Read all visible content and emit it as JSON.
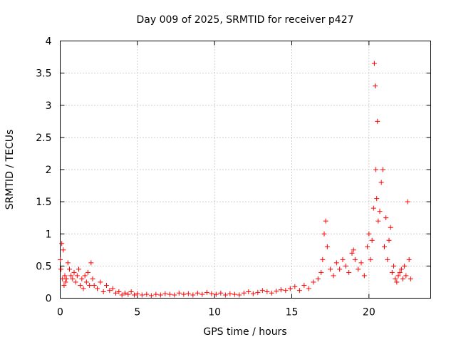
{
  "chart_data": {
    "type": "scatter",
    "title": "Day 009 of 2025, SRMTID for receiver p427",
    "xlabel": "GPS time / hours",
    "ylabel": "SRMTID / TECUs",
    "xlim": [
      0,
      24
    ],
    "ylim": [
      0,
      4
    ],
    "xticks": [
      0,
      5,
      10,
      15,
      20
    ],
    "xtick_labels": [
      "0",
      "5",
      "10",
      "15",
      "20"
    ],
    "yticks": [
      0,
      0.5,
      1,
      1.5,
      2,
      2.5,
      3,
      3.5,
      4
    ],
    "ytick_labels": [
      "0",
      "0.5",
      "1",
      "1.5",
      "2",
      "2.5",
      "3",
      "3.5",
      "4"
    ],
    "grid": true,
    "marker": "+",
    "color": "#ff0000",
    "series": [
      {
        "name": "SRMTID",
        "x": [
          0.0,
          0.05,
          0.1,
          0.15,
          0.2,
          0.25,
          0.3,
          0.35,
          0.4,
          0.5,
          0.6,
          0.7,
          0.8,
          0.9,
          1.0,
          1.1,
          1.2,
          1.3,
          1.4,
          1.5,
          1.6,
          1.7,
          1.8,
          1.9,
          2.0,
          2.1,
          2.2,
          2.4,
          2.6,
          2.8,
          3.0,
          3.2,
          3.4,
          3.6,
          3.8,
          4.0,
          4.2,
          4.4,
          4.6,
          4.8,
          5.0,
          5.3,
          5.6,
          5.9,
          6.2,
          6.5,
          6.8,
          7.1,
          7.4,
          7.7,
          8.0,
          8.3,
          8.6,
          8.9,
          9.2,
          9.5,
          9.8,
          10.1,
          10.4,
          10.7,
          11.0,
          11.3,
          11.6,
          11.9,
          12.2,
          12.5,
          12.8,
          13.1,
          13.4,
          13.7,
          14.0,
          14.3,
          14.6,
          14.9,
          15.2,
          15.5,
          15.8,
          16.1,
          16.4,
          16.7,
          16.9,
          17.0,
          17.1,
          17.2,
          17.3,
          17.5,
          17.7,
          17.9,
          18.1,
          18.3,
          18.5,
          18.7,
          18.9,
          19.0,
          19.1,
          19.3,
          19.5,
          19.7,
          19.9,
          20.0,
          20.1,
          20.2,
          20.3,
          20.35,
          20.4,
          20.45,
          20.5,
          20.55,
          20.6,
          20.7,
          20.8,
          20.9,
          21.0,
          21.1,
          21.2,
          21.3,
          21.4,
          21.5,
          21.6,
          21.7,
          21.8,
          21.9,
          22.0,
          22.1,
          22.2,
          22.3,
          22.4,
          22.5,
          22.6,
          22.7
        ],
        "y": [
          0.6,
          0.45,
          0.85,
          0.3,
          0.75,
          0.2,
          0.35,
          0.25,
          0.3,
          0.55,
          0.45,
          0.35,
          0.3,
          0.4,
          0.25,
          0.35,
          0.45,
          0.2,
          0.3,
          0.15,
          0.35,
          0.25,
          0.4,
          0.2,
          0.55,
          0.3,
          0.2,
          0.15,
          0.25,
          0.1,
          0.2,
          0.12,
          0.15,
          0.08,
          0.1,
          0.05,
          0.08,
          0.06,
          0.1,
          0.05,
          0.07,
          0.05,
          0.06,
          0.04,
          0.06,
          0.05,
          0.07,
          0.06,
          0.05,
          0.08,
          0.06,
          0.07,
          0.05,
          0.08,
          0.06,
          0.09,
          0.07,
          0.06,
          0.08,
          0.05,
          0.07,
          0.06,
          0.05,
          0.08,
          0.1,
          0.07,
          0.09,
          0.12,
          0.1,
          0.08,
          0.11,
          0.13,
          0.12,
          0.15,
          0.18,
          0.12,
          0.2,
          0.15,
          0.25,
          0.3,
          0.4,
          0.6,
          1.0,
          1.2,
          0.8,
          0.45,
          0.35,
          0.55,
          0.45,
          0.6,
          0.5,
          0.4,
          0.7,
          0.75,
          0.6,
          0.45,
          0.55,
          0.35,
          0.8,
          1.0,
          0.6,
          0.9,
          1.4,
          3.65,
          3.3,
          2.0,
          1.55,
          2.75,
          1.2,
          1.35,
          1.8,
          2.0,
          0.8,
          1.25,
          0.6,
          0.9,
          1.1,
          0.4,
          0.5,
          0.3,
          0.25,
          0.35,
          0.4,
          0.45,
          0.3,
          0.5,
          0.35,
          1.5,
          0.6,
          0.3
        ]
      }
    ]
  }
}
